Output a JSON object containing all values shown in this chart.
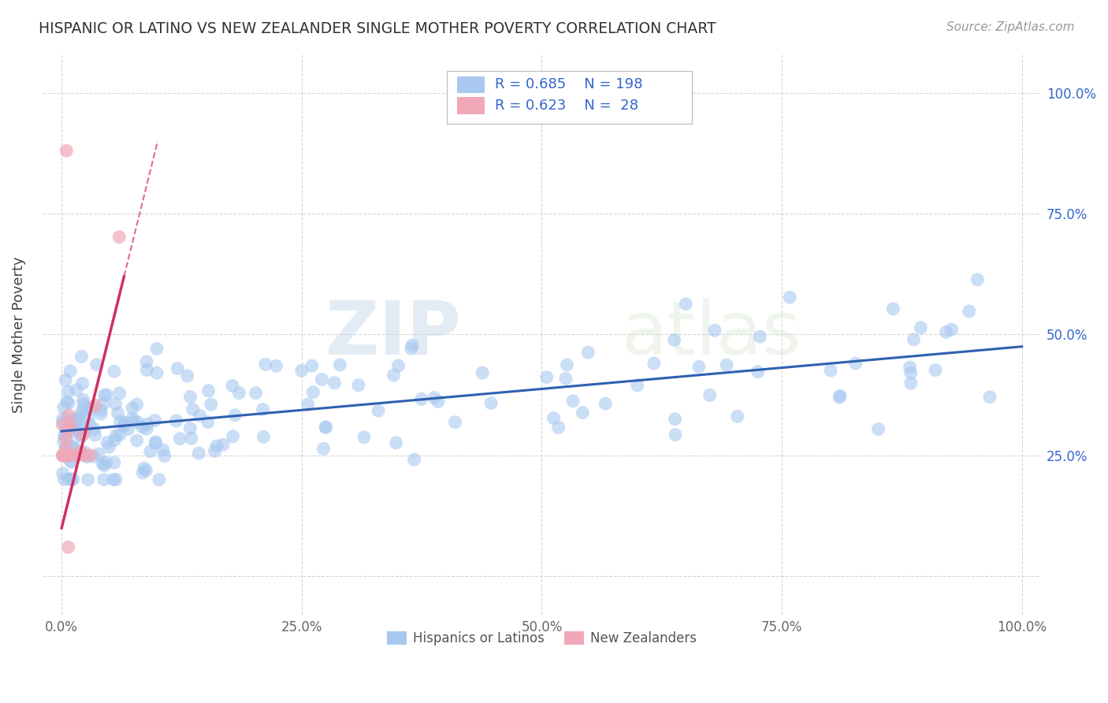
{
  "title": "HISPANIC OR LATINO VS NEW ZEALANDER SINGLE MOTHER POVERTY CORRELATION CHART",
  "source": "Source: ZipAtlas.com",
  "ylabel": "Single Mother Poverty",
  "legend1_label": "Hispanics or Latinos",
  "legend2_label": "New Zealanders",
  "R_blue": 0.685,
  "N_blue": 198,
  "R_pink": 0.623,
  "N_pink": 28,
  "blue_color": "#a8c8f0",
  "pink_color": "#f0a8b8",
  "blue_line_color": "#3060b0",
  "pink_line_color": "#d03060",
  "watermark_zip": "ZIP",
  "watermark_atlas": "atlas",
  "xlim": [
    -0.02,
    1.02
  ],
  "ylim": [
    -0.08,
    1.08
  ],
  "y_ticks": [
    0.0,
    0.25,
    0.5,
    0.75,
    1.0
  ],
  "y_tick_labels_right": [
    "",
    "25.0%",
    "50.0%",
    "75.0%",
    "100.0%"
  ],
  "x_ticks": [
    0.0,
    0.25,
    0.5,
    0.75,
    1.0
  ],
  "x_tick_labels": [
    "0.0%",
    "25.0%",
    "50.0%",
    "75.0%",
    "100.0%"
  ],
  "blue_intercept": 0.3,
  "blue_slope": 0.175,
  "blue_noise": 0.07,
  "pink_intercept": 0.1,
  "pink_slope": 8.0,
  "pink_noise": 0.1
}
